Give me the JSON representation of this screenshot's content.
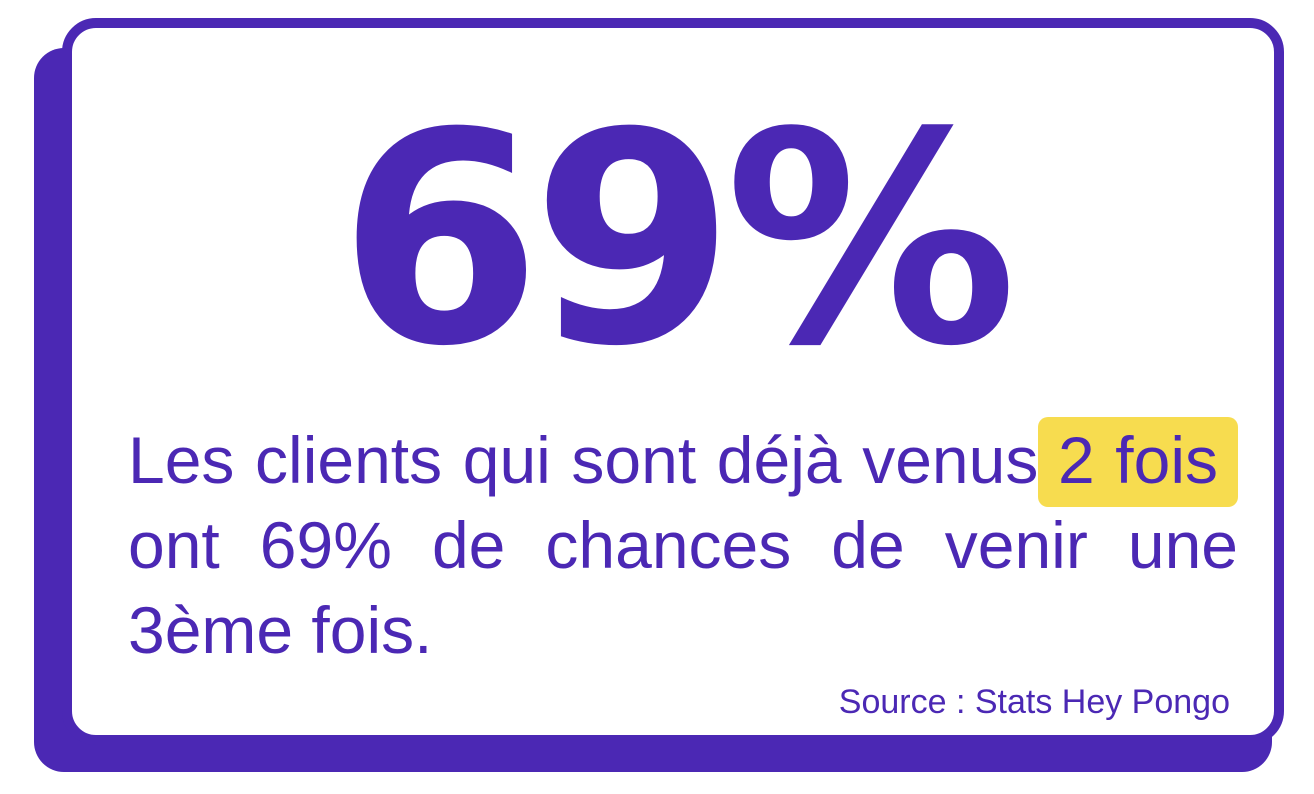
{
  "colors": {
    "primary": "#4B28B4",
    "highlight": "#F7DC4F",
    "background": "#FFFFFF"
  },
  "headline": "69%",
  "text": {
    "before": "Les clients qui sont déjà venus",
    "highlight": "2 fois",
    "after": "ont 69% de chances de venir une 3ème fois."
  },
  "source": "Source : Stats Hey Pongo"
}
